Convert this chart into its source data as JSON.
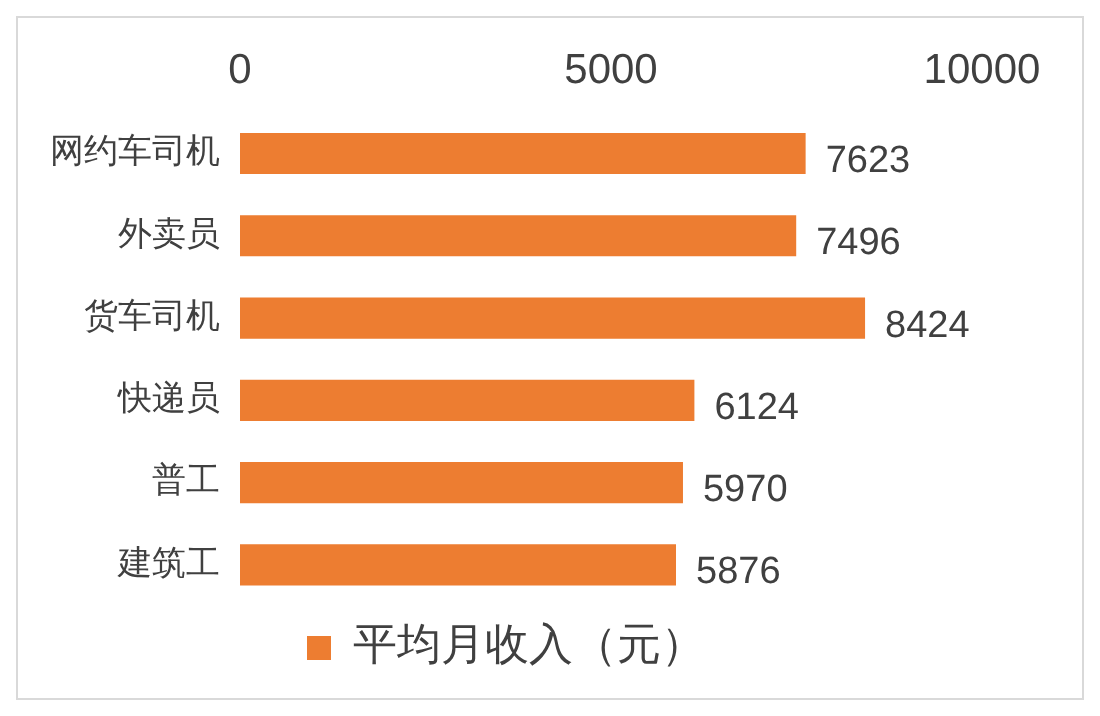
{
  "chart_data": {
    "type": "bar",
    "orientation": "horizontal",
    "categories": [
      "网约车司机",
      "外卖员",
      "货车司机",
      "快递员",
      "普工",
      "建筑工"
    ],
    "series": [
      {
        "name": "平均月收入（元）",
        "color": "#ed7d31",
        "values": [
          7623,
          7496,
          8424,
          6124,
          5970,
          5876
        ]
      }
    ],
    "xlim": [
      0,
      10000
    ],
    "xticks": [
      0,
      5000,
      10000
    ],
    "grid": false,
    "legend": "bottom",
    "data_labels": true
  }
}
